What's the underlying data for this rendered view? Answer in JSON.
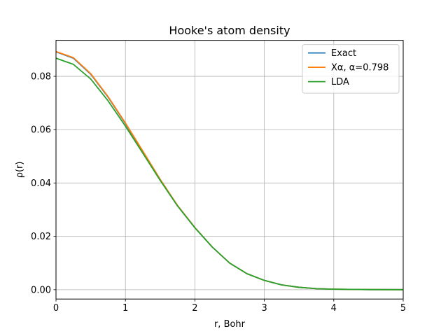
{
  "chart_data": {
    "type": "line",
    "title": "Hooke's atom density",
    "xlabel": "r, Bohr",
    "ylabel": "ρ(r)",
    "xlim": [
      0,
      5
    ],
    "ylim": [
      -0.0035,
      0.0935
    ],
    "xticks": [
      0,
      1,
      2,
      3,
      4,
      5
    ],
    "xtick_labels": [
      "0",
      "1",
      "2",
      "3",
      "4",
      "5"
    ],
    "yticks": [
      0.0,
      0.02,
      0.04,
      0.06,
      0.08
    ],
    "ytick_labels": [
      "0.00",
      "0.02",
      "0.04",
      "0.06",
      "0.08"
    ],
    "grid": true,
    "legend_position": "top-right",
    "x": [
      0,
      0.25,
      0.5,
      0.75,
      1.0,
      1.25,
      1.5,
      1.75,
      2.0,
      2.25,
      2.5,
      2.75,
      3.0,
      3.25,
      3.5,
      3.75,
      4.0,
      4.5,
      5.0
    ],
    "series": [
      {
        "name": "Exact",
        "color": "#1f77b4",
        "values": [
          0.0892,
          0.0868,
          0.0808,
          0.0722,
          0.0623,
          0.0518,
          0.0413,
          0.0315,
          0.0233,
          0.016,
          0.01,
          0.006,
          0.0035,
          0.0018,
          0.0009,
          0.0004,
          0.0002,
          5e-05,
          1e-05
        ]
      },
      {
        "name": "Xα, α=0.798",
        "color": "#ff7f0e",
        "values": [
          0.0893,
          0.087,
          0.081,
          0.0724,
          0.0625,
          0.052,
          0.0414,
          0.0316,
          0.0233,
          0.016,
          0.01,
          0.006,
          0.0035,
          0.0018,
          0.0009,
          0.0004,
          0.0002,
          5e-05,
          1e-05
        ]
      },
      {
        "name": "LDA",
        "color": "#2ca02c",
        "values": [
          0.0868,
          0.0845,
          0.079,
          0.0708,
          0.0613,
          0.0512,
          0.041,
          0.0314,
          0.0232,
          0.016,
          0.01,
          0.006,
          0.0035,
          0.0018,
          0.0009,
          0.0004,
          0.0002,
          5e-05,
          1e-05
        ]
      }
    ]
  }
}
